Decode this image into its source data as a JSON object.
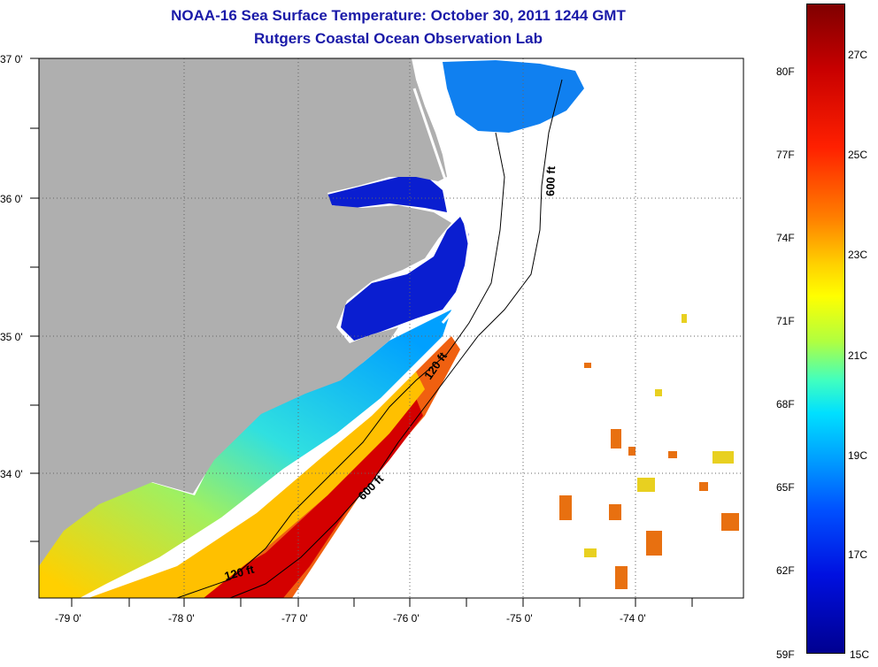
{
  "title": {
    "line1": "NOAA-16 Sea Surface Temperature:  October 30, 2011 1244 GMT",
    "line2": "Rutgers Coastal Ocean Observation Lab"
  },
  "axes": {
    "lat_labels": [
      "37 0'",
      "36 0'",
      "35 0'",
      "34 0'"
    ],
    "lon_labels": [
      "-79 0'",
      "-78 0'",
      "-77 0'",
      "-76 0'",
      "-75 0'",
      "-74 0'"
    ]
  },
  "contours": {
    "label_600_north": "600 ft",
    "label_120": "120 ft",
    "label_600_south": "600 ft",
    "label_120_south": "120 ft"
  },
  "colorbar": {
    "fahrenheit": [
      "80F",
      "77F",
      "74F",
      "71F",
      "68F",
      "65F",
      "62F",
      "59F"
    ],
    "celsius": [
      "27C",
      "25C",
      "23C",
      "21C",
      "19C",
      "17C",
      "15C"
    ],
    "range_c": [
      15,
      28
    ]
  },
  "colors": {
    "land": "#afafaf",
    "title": "#1a1aa8",
    "warm": "#d40000",
    "cool": "#0a1ed0"
  }
}
